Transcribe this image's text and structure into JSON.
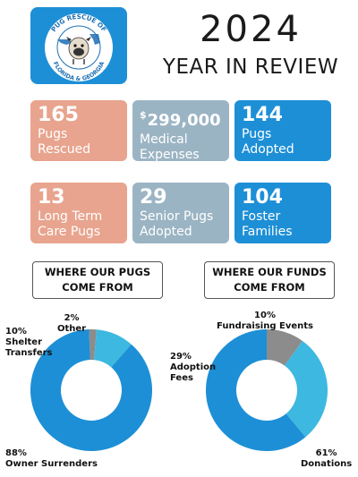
{
  "logo": {
    "org_top": "PUG RESCUE OF",
    "org_bottom": "FLORIDA & GEORGIA",
    "colors": {
      "background": "#1d8fd6",
      "ring": "#ffffff",
      "accent": "#1d6fb3"
    },
    "icon": "pug-icon"
  },
  "header": {
    "year": "2024",
    "subtitle": "YEAR IN REVIEW"
  },
  "stats": [
    {
      "value": "165",
      "line1": "Pugs",
      "line2": "Rescued",
      "color": "#e8a48e"
    },
    {
      "prefix": "$",
      "value": "299,000",
      "line1": "Medical",
      "line2": "Expenses",
      "color": "#9bb4c4"
    },
    {
      "value": "144",
      "line1": "Pugs",
      "line2": "Adopted",
      "color": "#1d8fd6"
    },
    {
      "value": "13",
      "line1": "Long Term",
      "line2": "Care Pugs",
      "color": "#e8a48e"
    },
    {
      "value": "29",
      "line1": "Senior Pugs",
      "line2": "Adopted",
      "color": "#9bb4c4"
    },
    {
      "value": "104",
      "line1": "Foster",
      "line2": "Families",
      "color": "#1d8fd6"
    }
  ],
  "sections": {
    "pugs_line1": "WHERE OUR PUGS",
    "pugs_line2": "COME FROM",
    "funds_line1": "WHERE OUR FUNDS",
    "funds_line2": "COME FROM"
  },
  "chart_data": [
    {
      "type": "pie",
      "title": "WHERE OUR PUGS COME FROM",
      "donut": true,
      "slices": [
        {
          "label": "Owner Surrenders",
          "value": 88,
          "pct_label": "88%",
          "color": "#1d8fd6"
        },
        {
          "label": "Shelter Transfers",
          "value": 10,
          "pct_label": "10%",
          "color": "#3db8e0"
        },
        {
          "label": "Other",
          "value": 2,
          "pct_label": "2%",
          "color": "#8c8c8c"
        }
      ]
    },
    {
      "type": "pie",
      "title": "WHERE OUR FUNDS COME FROM",
      "donut": true,
      "slices": [
        {
          "label": "Donations",
          "value": 61,
          "pct_label": "61%",
          "color": "#1d8fd6"
        },
        {
          "label": "Adoption Fees",
          "value": 29,
          "pct_label": "29%",
          "color": "#3db8e0"
        },
        {
          "label": "Fundraising Events",
          "value": 10,
          "pct_label": "10%",
          "color": "#8c8c8c"
        }
      ]
    }
  ]
}
